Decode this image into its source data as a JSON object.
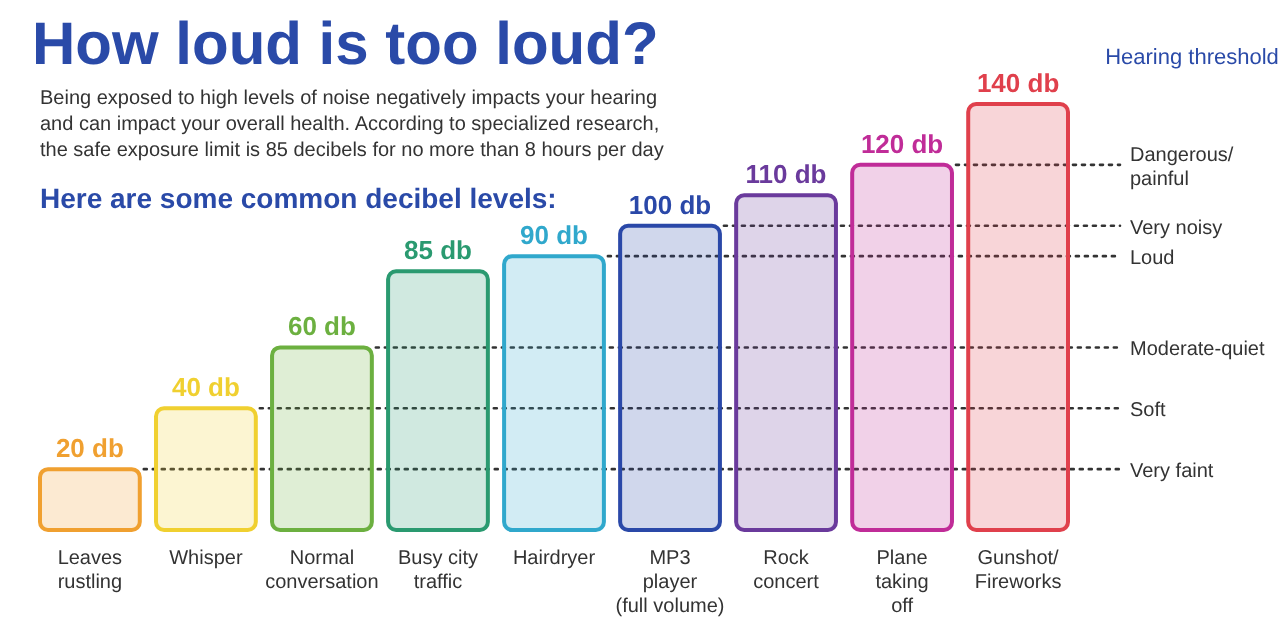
{
  "chart_data": {
    "type": "bar",
    "title": "How loud is too loud?",
    "subtitle": "Being exposed to high levels of noise negatively impacts your hearing and can impact your overall health. According to specialized research, the safe exposure limit is 85 decibels for no more than 8 hours per day",
    "annotations": [
      "Here are some common decibel levels:"
    ],
    "legend_title": "Hearing threshold",
    "categories": [
      "Leaves rustling",
      "Whisper",
      "Normal conversation",
      "Busy city traffic",
      "Hairdryer",
      "MP3 player (full volume)",
      "Rock concert",
      "Plane taking off",
      "Gunshot/ Fireworks"
    ],
    "values": [
      20,
      40,
      60,
      85,
      90,
      100,
      110,
      120,
      140
    ],
    "value_labels": [
      "20 db",
      "40 db",
      "60 db",
      "85 db",
      "90 db",
      "100 db",
      "110 db",
      "120 db",
      "140 db"
    ],
    "colors": [
      "#f0a030",
      "#f0d030",
      "#6cb040",
      "#2a9a70",
      "#30a8cc",
      "#2a48a8",
      "#6a3a9c",
      "#c02c98",
      "#e0404c"
    ],
    "ref_lines": [
      {
        "axis": "y",
        "value": 120,
        "label": "Dangerous/ painful",
        "line_style": "dotted"
      },
      {
        "axis": "y",
        "value": 100,
        "label": "Very noisy",
        "line_style": "dotted"
      },
      {
        "axis": "y",
        "value": 90,
        "label": "Loud",
        "line_style": "dotted"
      },
      {
        "axis": "y",
        "value": 60,
        "label": "Moderate-quiet",
        "line_style": "dotted"
      },
      {
        "axis": "y",
        "value": 40,
        "label": "Soft",
        "line_style": "dotted"
      },
      {
        "axis": "y",
        "value": 20,
        "label": "Very faint",
        "line_style": "dotted"
      }
    ]
  }
}
